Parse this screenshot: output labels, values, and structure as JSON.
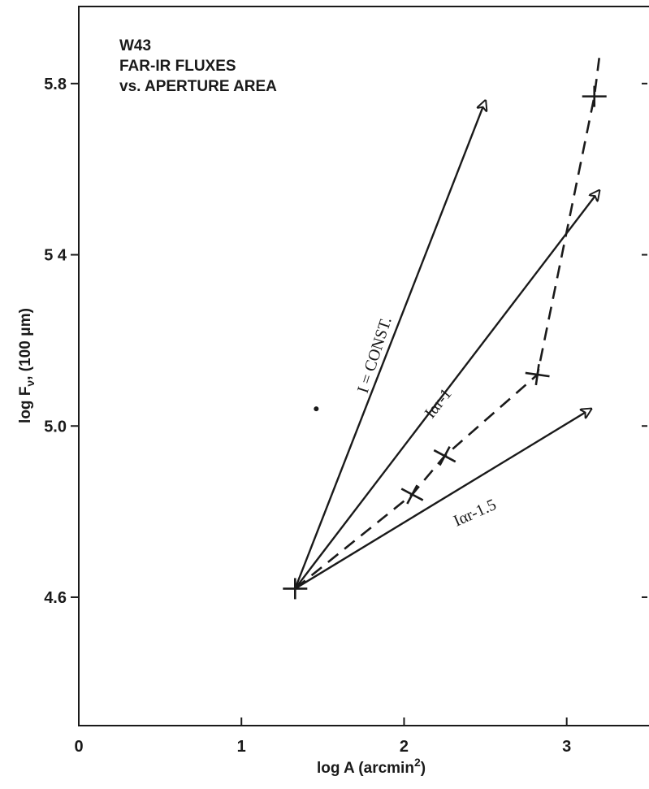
{
  "chart_data": {
    "type": "line",
    "title_lines": [
      "W43",
      "FAR-IR FLUXES",
      "vs. APERTURE AREA"
    ],
    "xlabel": "log A (arcmin",
    "xlabel_sup": "2",
    "xlabel_end": ")",
    "ylabel": "log F",
    "ylabel_sub": "ν",
    "ylabel_end": ", (100 μm)",
    "xlim": [
      0,
      3.5
    ],
    "ylim": [
      4.3,
      5.98
    ],
    "x_ticks": [
      0,
      1,
      2,
      3
    ],
    "x_tick_labels": [
      "0",
      "1",
      "2",
      "3"
    ],
    "y_ticks": [
      4.6,
      5.0,
      5.4,
      5.8
    ],
    "y_tick_labels": [
      "4.6",
      "5.0",
      "5 4",
      "5.8"
    ],
    "measured": {
      "x": [
        1.33,
        2.05,
        2.25,
        2.82,
        3.17
      ],
      "y": [
        4.62,
        4.84,
        4.93,
        5.12,
        5.77
      ],
      "extension": {
        "x": [
          3.17,
          3.2
        ],
        "y": [
          5.77,
          5.86
        ]
      }
    },
    "model_lines": [
      {
        "label": "I = CONST.",
        "start": [
          1.33,
          4.62
        ],
        "end": [
          2.5,
          5.76
        ]
      },
      {
        "label": "Iαr-1",
        "start": [
          1.33,
          4.62
        ],
        "end": [
          3.2,
          5.55
        ]
      },
      {
        "label": "Iαr-1.5",
        "start": [
          1.33,
          4.62
        ],
        "end": [
          3.15,
          5.04
        ]
      }
    ],
    "stray_point": {
      "x": 1.46,
      "y": 5.04
    }
  }
}
